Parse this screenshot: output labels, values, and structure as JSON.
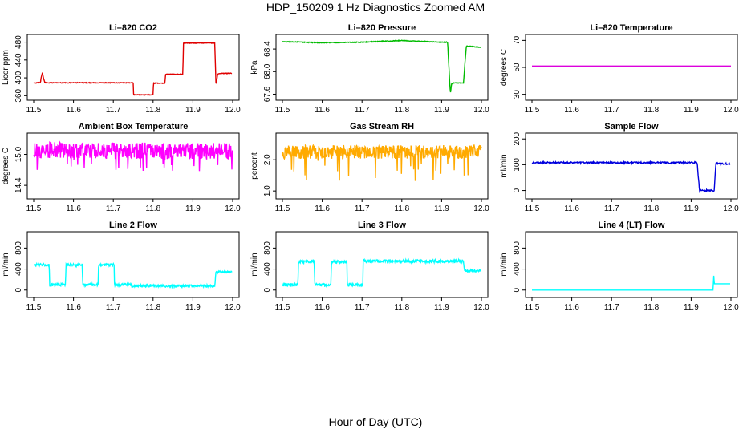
{
  "figure": {
    "title": "HDP_150209  1 Hz Diagnostics Zoomed AM",
    "xlabel": "Hour of Day (UTC)"
  },
  "chart_data": [
    {
      "type": "line",
      "title": "Li–820 CO2",
      "ylabel": "Licor ppm",
      "color": "#e00000",
      "xlim": [
        11.5,
        12.0
      ],
      "xticks": [
        "11.5",
        "11.6",
        "11.7",
        "11.8",
        "11.9",
        "12.0"
      ],
      "ylim": [
        357,
        490
      ],
      "yticks": [
        "360",
        "400",
        "440",
        "480"
      ],
      "noise": 0.7,
      "x": [
        11.5,
        11.517,
        11.519,
        11.522,
        11.525,
        11.528,
        11.6,
        11.75,
        11.751,
        11.8,
        11.801,
        11.83,
        11.831,
        11.875,
        11.876,
        11.955,
        11.958,
        11.962,
        11.965,
        11.998
      ],
      "y": [
        388,
        390,
        402,
        412,
        398,
        389,
        389,
        389,
        362,
        362,
        388,
        388,
        408,
        408,
        478,
        478,
        383,
        407,
        410,
        410
      ]
    },
    {
      "type": "line",
      "title": "Li–820 Pressure",
      "ylabel": "kPa",
      "color": "#00bb00",
      "xlim": [
        11.5,
        12.0
      ],
      "xticks": [
        "11.5",
        "11.6",
        "11.7",
        "11.8",
        "11.9",
        "12.0"
      ],
      "ylim": [
        67.55,
        68.6
      ],
      "yticks": [
        "67.6",
        "68.0",
        "68.4"
      ],
      "noise": 0.006,
      "x": [
        11.5,
        11.6,
        11.7,
        11.8,
        11.9,
        11.915,
        11.92,
        11.922,
        11.925,
        11.93,
        11.955,
        11.958,
        11.962,
        11.97,
        11.998
      ],
      "y": [
        68.53,
        68.51,
        68.52,
        68.55,
        68.52,
        68.52,
        67.85,
        67.62,
        67.78,
        67.8,
        67.8,
        68.1,
        68.45,
        68.45,
        68.43
      ]
    },
    {
      "type": "line",
      "title": "Li–820 Temperature",
      "ylabel": "degrees C",
      "color": "#dd00dd",
      "xlim": [
        11.5,
        12.0
      ],
      "xticks": [
        "11.5",
        "11.6",
        "11.7",
        "11.8",
        "11.9",
        "12.0"
      ],
      "ylim": [
        28,
        72
      ],
      "yticks": [
        "30",
        "50",
        "70"
      ],
      "noise": 0,
      "x": [
        11.5,
        12.0
      ],
      "y": [
        51,
        51
      ]
    },
    {
      "type": "line",
      "title": "Ambient Box Temperature",
      "ylabel": "degrees C",
      "color": "#ff00ff",
      "xlim": [
        11.5,
        12.0
      ],
      "xticks": [
        "11.5",
        "11.6",
        "11.7",
        "11.8",
        "11.9",
        "12.0"
      ],
      "ylim": [
        14.2,
        15.35
      ],
      "yticks": [
        "14.4",
        "15.0"
      ],
      "noise": 0.16,
      "spike": 0.45,
      "spikeDir": "down",
      "x": [
        11.5,
        12.0
      ],
      "y": [
        15.08,
        15.06
      ]
    },
    {
      "type": "line",
      "title": "Gas Stream RH",
      "ylabel": "percent",
      "color": "#ffaa00",
      "xlim": [
        11.5,
        12.0
      ],
      "xticks": [
        "11.5",
        "11.6",
        "11.7",
        "11.8",
        "11.9",
        "12.0"
      ],
      "ylim": [
        0.85,
        2.75
      ],
      "yticks": [
        "1.0",
        "2.0"
      ],
      "noise": 0.22,
      "spike": 0.9,
      "spikeDir": "down",
      "x": [
        11.5,
        12.0
      ],
      "y": [
        2.25,
        2.25
      ]
    },
    {
      "type": "line",
      "title": "Sample Flow",
      "ylabel": "ml/min",
      "color": "#0000dd",
      "xlim": [
        11.5,
        12.0
      ],
      "xticks": [
        "11.5",
        "11.6",
        "11.7",
        "11.8",
        "11.9",
        "12.0"
      ],
      "ylim": [
        -20,
        210
      ],
      "yticks": [
        "0",
        "100",
        "200"
      ],
      "noise": 3,
      "x": [
        11.5,
        11.915,
        11.921,
        11.958,
        11.962,
        11.998
      ],
      "y": [
        108,
        108,
        0,
        0,
        105,
        103
      ]
    },
    {
      "type": "line",
      "title": "Line 2 Flow",
      "ylabel": "ml/min",
      "color": "#00ffff",
      "xlim": [
        11.5,
        12.0
      ],
      "xticks": [
        "11.5",
        "11.6",
        "11.7",
        "11.8",
        "11.9",
        "12.0"
      ],
      "ylim": [
        -80,
        1050
      ],
      "yticks": [
        "0",
        "400",
        "800"
      ],
      "noise": 25,
      "x": [
        11.5,
        11.539,
        11.54,
        11.58,
        11.581,
        11.622,
        11.623,
        11.662,
        11.663,
        11.702,
        11.703,
        11.745,
        11.746,
        11.955,
        11.958,
        11.998
      ],
      "y": [
        480,
        480,
        100,
        100,
        480,
        480,
        100,
        100,
        480,
        480,
        100,
        100,
        80,
        80,
        340,
        340
      ]
    },
    {
      "type": "line",
      "title": "Line 3 Flow",
      "ylabel": "ml/min",
      "color": "#00ffff",
      "xlim": [
        11.5,
        12.0
      ],
      "xticks": [
        "11.5",
        "11.6",
        "11.7",
        "11.8",
        "11.9",
        "12.0"
      ],
      "ylim": [
        -80,
        1050
      ],
      "yticks": [
        "0",
        "400",
        "800"
      ],
      "noise": 30,
      "x": [
        11.5,
        11.539,
        11.54,
        11.58,
        11.581,
        11.622,
        11.623,
        11.662,
        11.663,
        11.702,
        11.703,
        11.955,
        11.958,
        11.998
      ],
      "y": [
        100,
        100,
        540,
        540,
        100,
        100,
        540,
        540,
        100,
        100,
        550,
        550,
        370,
        370
      ]
    },
    {
      "type": "line",
      "title": "Line 4 (LT) Flow",
      "ylabel": "ml/min",
      "color": "#00ffff",
      "xlim": [
        11.5,
        12.0
      ],
      "xticks": [
        "11.5",
        "11.6",
        "11.7",
        "11.8",
        "11.9",
        "12.0"
      ],
      "ylim": [
        -80,
        1050
      ],
      "yticks": [
        "0",
        "400",
        "800"
      ],
      "noise": 0,
      "x": [
        11.5,
        11.955,
        11.957,
        11.958,
        11.96,
        11.998
      ],
      "y": [
        0,
        0,
        300,
        120,
        120,
        120
      ]
    }
  ]
}
